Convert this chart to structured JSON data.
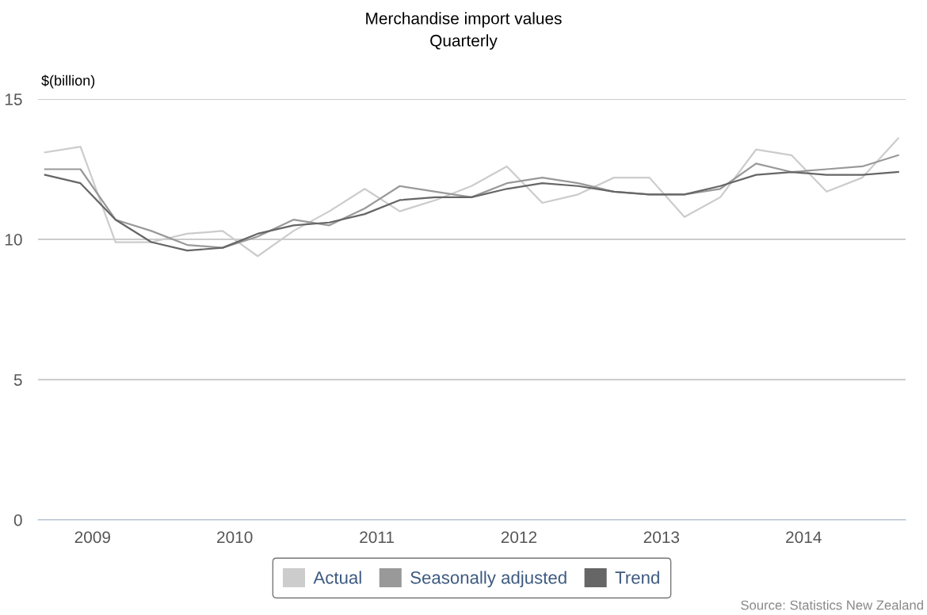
{
  "chart_data": {
    "type": "line",
    "title": "Merchandise import values",
    "subtitle": "Quarterly",
    "ylabel": "$(billion)",
    "x": [
      "2008-09",
      "2008-12",
      "2009-03",
      "2009-06",
      "2009-09",
      "2009-12",
      "2010-03",
      "2010-06",
      "2010-09",
      "2010-12",
      "2011-03",
      "2011-06",
      "2011-09",
      "2011-12",
      "2012-03",
      "2012-06",
      "2012-09",
      "2012-12",
      "2013-03",
      "2013-06",
      "2013-09",
      "2013-12",
      "2014-03",
      "2014-06",
      "2014-09"
    ],
    "series": [
      {
        "name": "Actual",
        "color": "#cccccc",
        "values": [
          13.1,
          13.3,
          9.9,
          9.9,
          10.2,
          10.3,
          9.4,
          10.3,
          11.0,
          11.8,
          11.0,
          11.4,
          11.9,
          12.6,
          11.3,
          11.6,
          12.2,
          12.2,
          10.8,
          11.5,
          13.2,
          13.0,
          11.7,
          12.2,
          13.6
        ]
      },
      {
        "name": "Seasonally adjusted",
        "color": "#999999",
        "values": [
          12.5,
          12.5,
          10.7,
          10.3,
          9.8,
          9.7,
          10.1,
          10.7,
          10.5,
          11.1,
          11.9,
          11.7,
          11.5,
          12.0,
          12.2,
          12.0,
          11.7,
          11.6,
          11.6,
          11.8,
          12.7,
          12.4,
          12.5,
          12.6,
          13.0
        ]
      },
      {
        "name": "Trend",
        "color": "#666666",
        "values": [
          12.3,
          12.0,
          10.7,
          9.9,
          9.6,
          9.7,
          10.2,
          10.5,
          10.6,
          10.9,
          11.4,
          11.5,
          11.5,
          11.8,
          12.0,
          11.9,
          11.7,
          11.6,
          11.6,
          11.9,
          12.3,
          12.4,
          12.3,
          12.3,
          12.4
        ]
      }
    ],
    "xlim": [
      "2008-08-14",
      "2014-09-20"
    ],
    "xticks": [
      "2009",
      "2010",
      "2011",
      "2012",
      "2013",
      "2014"
    ],
    "ylim": [
      0,
      15
    ],
    "yticks": [
      0,
      5,
      10,
      15
    ],
    "grid": "y",
    "legend": "bottom",
    "line_style": "solid",
    "marker": "none",
    "annotations": [
      "Source: Statistics New Zealand"
    ]
  }
}
